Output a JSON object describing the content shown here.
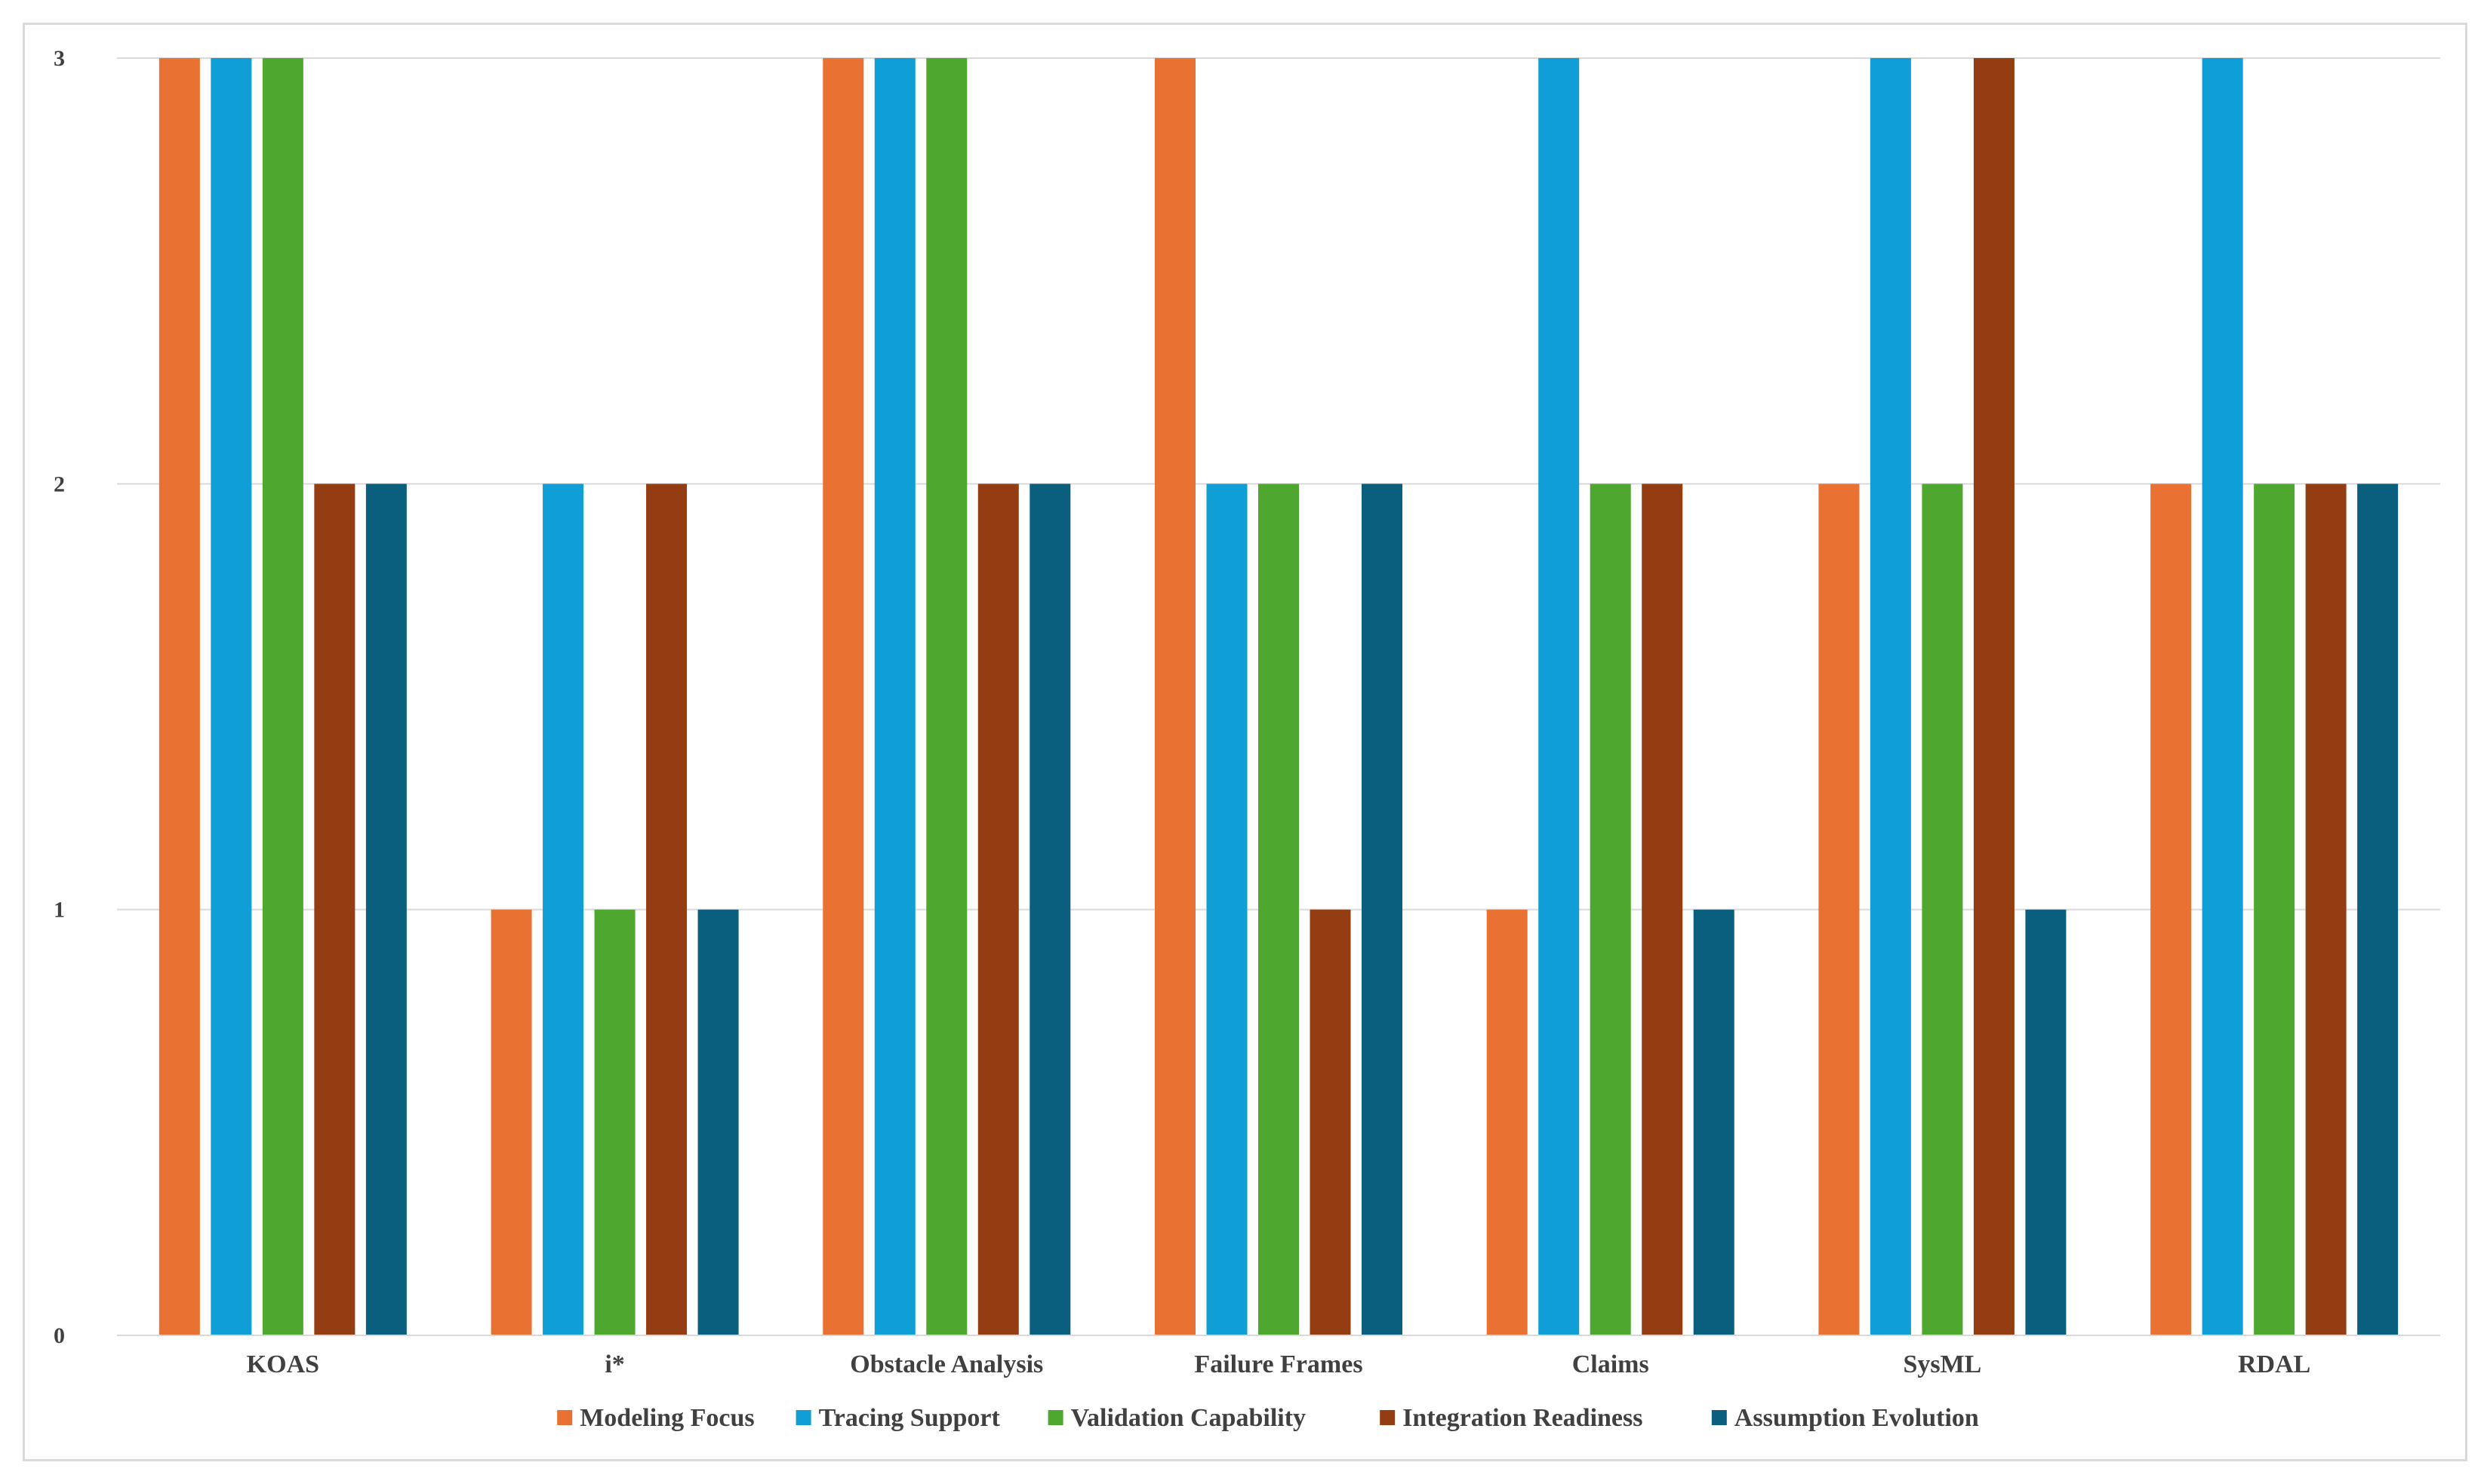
{
  "chart_data": {
    "type": "bar",
    "title": "",
    "xlabel": "",
    "ylabel": "",
    "ylim": [
      0,
      3
    ],
    "yticks": [
      0,
      1,
      2,
      3
    ],
    "grid": true,
    "legend_position": "bottom",
    "categories": [
      "KOAS",
      "i*",
      "Obstacle Analysis",
      "Failure Frames",
      "Claims",
      "SysML",
      "RDAL"
    ],
    "series": [
      {
        "name": "Modeling Focus",
        "color": "#E97132",
        "values": [
          3,
          1,
          3,
          3,
          1,
          2,
          2
        ]
      },
      {
        "name": "Tracing Support",
        "color": "#0F9ED5",
        "values": [
          3,
          2,
          3,
          2,
          3,
          3,
          3
        ]
      },
      {
        "name": "Validation Capability",
        "color": "#4EA72E",
        "values": [
          3,
          1,
          3,
          2,
          2,
          2,
          2
        ]
      },
      {
        "name": "Integration Readiness",
        "color": "#953D12",
        "values": [
          2,
          2,
          2,
          1,
          2,
          3,
          2
        ]
      },
      {
        "name": "Assumption Evolution",
        "color": "#0A5F7E",
        "values": [
          2,
          1,
          2,
          2,
          1,
          1,
          2
        ]
      }
    ]
  }
}
